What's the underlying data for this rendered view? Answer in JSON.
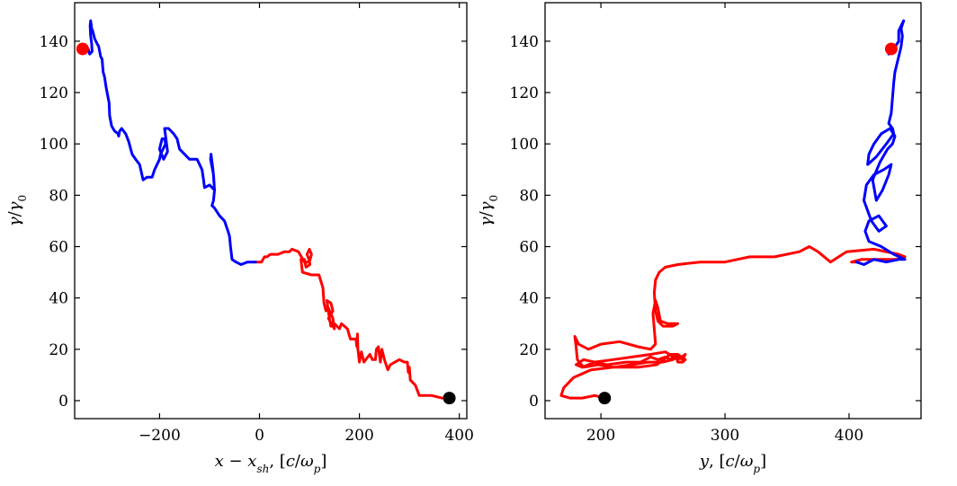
{
  "chart_data": [
    {
      "type": "line",
      "xlabel": "x − x_sh, [c/ω_p]",
      "ylabel": "γ/γ0",
      "xlim": [
        -370,
        415
      ],
      "ylim": [
        -7,
        155
      ],
      "xticks": [
        -200,
        0,
        200,
        400
      ],
      "xtick_labels": [
        "−200",
        "0",
        "200",
        "400"
      ],
      "yticks": [
        0,
        20,
        40,
        60,
        80,
        100,
        120,
        140
      ],
      "ytick_labels": [
        "0",
        "20",
        "40",
        "60",
        "80",
        "100",
        "120",
        "140"
      ],
      "grid": false,
      "colors": {
        "early": "#ff0000",
        "late": "#0000ff",
        "start": "#000000",
        "end": "#ff0000"
      },
      "series": [
        {
          "segment": "early",
          "x": [
            380,
            365,
            345,
            320,
            312,
            302,
            300,
            298,
            296,
            290,
            280,
            262,
            257,
            250,
            245,
            242,
            238,
            234,
            232,
            226,
            221,
            209,
            204,
            200,
            197,
            196,
            195,
            193,
            182,
            176,
            164,
            160,
            150,
            143,
            140,
            137,
            135,
            143,
            147,
            138,
            144,
            150,
            147,
            138,
            133,
            129,
            127,
            119,
            104,
            86,
            83,
            90,
            93,
            101,
            99,
            95,
            100,
            104,
            100,
            90,
            78,
            65,
            60,
            50,
            37,
            22,
            15,
            10,
            4,
            -8
          ],
          "y": [
            1,
            1,
            2,
            2,
            6,
            8,
            13,
            11,
            15,
            15,
            16,
            14,
            12,
            16,
            20,
            15,
            21,
            20,
            16,
            16,
            18,
            15,
            19,
            15,
            20,
            26,
            21,
            24,
            24,
            28,
            30,
            28,
            30,
            29,
            32,
            36,
            39,
            38,
            35,
            32,
            30,
            28,
            32,
            36,
            35,
            38,
            44,
            49,
            49,
            50,
            55,
            55,
            52,
            53,
            55,
            57,
            59,
            57,
            54,
            54,
            58,
            59,
            58,
            58,
            57,
            57,
            56,
            56,
            54,
            54
          ]
        },
        {
          "segment": "late",
          "x": [
            -8,
            -24,
            -37,
            -47,
            -55,
            -58,
            -60,
            -63,
            -70,
            -80,
            -90,
            -95,
            -92,
            -90,
            -93,
            -97,
            -98,
            -92,
            -90,
            -100,
            -110,
            -112,
            -115,
            -125,
            -140,
            -160,
            -165,
            -172,
            -182,
            -190,
            -188,
            -186,
            -184,
            -192,
            -200,
            -195,
            -190,
            -188,
            -198,
            -200,
            -210,
            -215,
            -225,
            -233,
            -240,
            -248,
            -255,
            -262,
            -268,
            -276,
            -280,
            -282,
            -283,
            -290,
            -296,
            -300,
            -301,
            -303,
            -307,
            -310,
            -313,
            -315,
            -318,
            -322,
            -325,
            -330,
            -334,
            -336,
            -338,
            -339,
            -338,
            -336,
            -335,
            -340,
            -343,
            -348,
            -355
          ],
          "y": [
            54,
            54,
            53,
            54,
            55,
            60,
            64,
            66,
            70,
            72,
            75,
            76,
            78,
            82,
            90,
            96,
            94,
            88,
            82,
            84,
            83,
            86,
            90,
            94,
            94,
            98,
            102,
            104,
            106,
            106,
            103,
            100,
            97,
            94,
            98,
            102,
            102,
            100,
            96,
            94,
            90,
            87,
            87,
            86,
            92,
            94,
            96,
            101,
            104,
            106,
            105,
            103,
            104,
            105,
            107,
            111,
            116,
            118,
            122,
            126,
            128,
            133,
            134,
            138,
            139,
            141,
            144,
            145,
            148,
            146,
            142,
            139,
            136,
            135,
            137,
            136,
            137
          ]
        }
      ],
      "markers": [
        {
          "name": "start",
          "x": 380,
          "y": 1
        },
        {
          "name": "end",
          "x": -354,
          "y": 137
        }
      ]
    },
    {
      "type": "line",
      "xlabel": "y, [c/ω_p]",
      "ylabel": "γ/γ0",
      "xlim": [
        155,
        458
      ],
      "ylim": [
        -7,
        155
      ],
      "xticks": [
        200,
        300,
        400
      ],
      "xtick_labels": [
        "200",
        "300",
        "400"
      ],
      "yticks": [
        0,
        20,
        40,
        60,
        80,
        100,
        120,
        140
      ],
      "ytick_labels": [
        "0",
        "20",
        "40",
        "60",
        "80",
        "100",
        "120",
        "140"
      ],
      "grid": false,
      "colors": {
        "early": "#ff0000",
        "late": "#0000ff",
        "start": "#000000",
        "end": "#ff0000"
      },
      "series": [
        {
          "segment": "early",
          "x": [
            203,
            195,
            185,
            175,
            168,
            170,
            178,
            192,
            210,
            230,
            245,
            256,
            262,
            268,
            266,
            262,
            260,
            256,
            252,
            246,
            240,
            232,
            220,
            205,
            195,
            185,
            180,
            186,
            195,
            210,
            225,
            240,
            252,
            262,
            268,
            266,
            262,
            258,
            250,
            238,
            225,
            210,
            198,
            186,
            181,
            180,
            179,
            182,
            190,
            200,
            215,
            230,
            240,
            244,
            243,
            242,
            244,
            246,
            248,
            254,
            262,
            258,
            250,
            246,
            244,
            243,
            244,
            247,
            252,
            262,
            280,
            300,
            320,
            340,
            360,
            368,
            375,
            385,
            398,
            420,
            440,
            445,
            438,
            425,
            410,
            402,
            406
          ],
          "y": [
            1,
            2,
            1,
            1,
            2,
            5,
            9,
            12,
            13,
            13,
            14,
            18,
            18,
            16,
            15,
            15,
            18,
            16,
            17,
            16,
            17,
            15,
            15,
            14,
            15,
            13,
            14,
            16,
            15,
            16,
            17,
            18,
            19,
            16,
            18,
            16,
            17,
            16,
            15,
            15,
            14,
            13,
            14,
            13,
            16,
            21,
            25,
            22,
            20,
            22,
            23,
            21,
            20,
            22,
            28,
            34,
            39,
            36,
            31,
            30,
            30,
            29,
            29,
            31,
            35,
            42,
            47,
            50,
            52,
            53,
            54,
            54,
            56,
            56,
            58,
            60,
            58,
            54,
            58,
            59,
            57,
            56,
            55,
            55,
            55,
            54,
            54
          ]
        },
        {
          "segment": "late",
          "x": [
            406,
            412,
            420,
            430,
            440,
            445,
            436,
            426,
            416,
            413,
            416,
            424,
            430,
            424,
            418,
            412,
            414,
            420,
            428,
            434,
            432,
            427,
            422,
            419,
            425,
            431,
            435,
            437,
            433,
            426,
            420,
            416,
            415,
            422,
            430,
            436,
            435,
            432,
            434,
            435,
            436,
            437,
            440,
            442,
            443,
            442,
            444,
            442,
            440,
            440,
            436,
            433,
            432
          ],
          "y": [
            54,
            53,
            55,
            54,
            55,
            55,
            57,
            60,
            62,
            66,
            70,
            72,
            68,
            66,
            70,
            78,
            84,
            88,
            90,
            92,
            88,
            82,
            78,
            86,
            93,
            98,
            100,
            103,
            106,
            104,
            100,
            96,
            92,
            95,
            100,
            104,
            106,
            108,
            112,
            118,
            124,
            128,
            134,
            138,
            142,
            145,
            148,
            146,
            144,
            140,
            137,
            136,
            135
          ]
        }
      ],
      "markers": [
        {
          "name": "start",
          "x": 203,
          "y": 1
        },
        {
          "name": "end",
          "x": 434,
          "y": 137
        }
      ]
    }
  ]
}
